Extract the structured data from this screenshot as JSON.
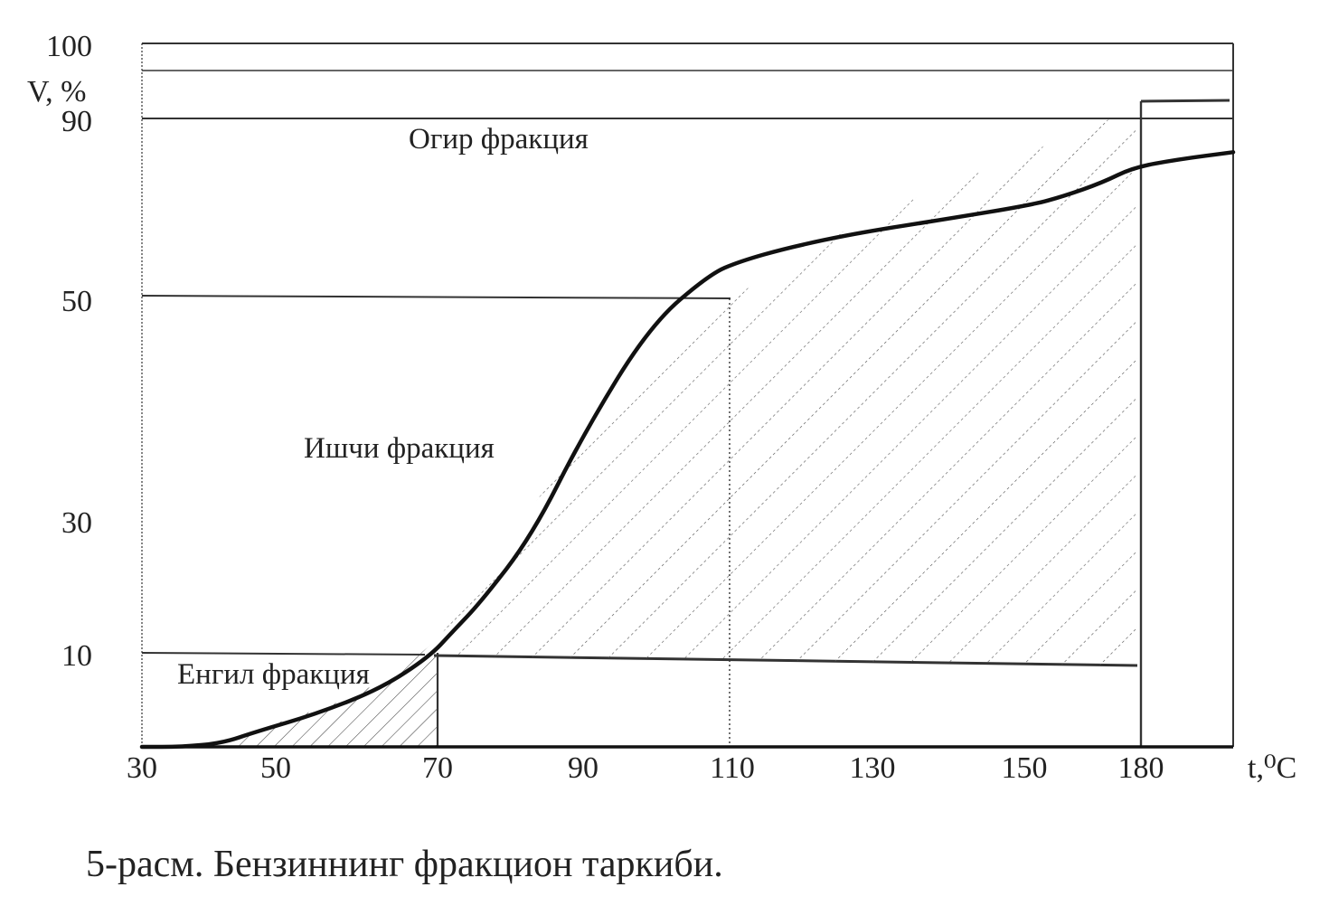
{
  "chart_data": {
    "type": "line",
    "title": "",
    "xlabel": "t,⁰C",
    "ylabel": "V, %",
    "x_ticks": [
      "30",
      "50",
      "70",
      "90",
      "110",
      "130",
      "150",
      "180"
    ],
    "y_ticks": [
      "10",
      "30",
      "50",
      "90",
      "100"
    ],
    "grid": false,
    "legend": "none",
    "series": [
      {
        "x": [
          30,
          36,
          42,
          47,
          55,
          63,
          69,
          72,
          76,
          83,
          90,
          99,
          107,
          111,
          118,
          128,
          140,
          152,
          160,
          170,
          178,
          184,
          190
        ],
        "y": [
          0,
          0,
          0.4,
          1.6,
          3.5,
          6.2,
          9.6,
          13.1,
          17.7,
          27.7,
          37.7,
          47.6,
          55.4,
          58.2,
          61.3,
          64.6,
          67.7,
          70.8,
          72.7,
          75.7,
          79.1,
          80.9,
          82.5
        ]
      }
    ],
    "regions": [
      {
        "label": "Енгил фракция",
        "x_range": [
          30,
          70
        ],
        "level": 10
      },
      {
        "label": "Ишчи фракция",
        "x_range": [
          70,
          180
        ],
        "level": 50
      },
      {
        "label": "Огир фракция",
        "x_range": [
          180,
          190
        ],
        "level": 90
      }
    ],
    "caption": "5-расм. Бензиннинг фракцион таркиби."
  }
}
